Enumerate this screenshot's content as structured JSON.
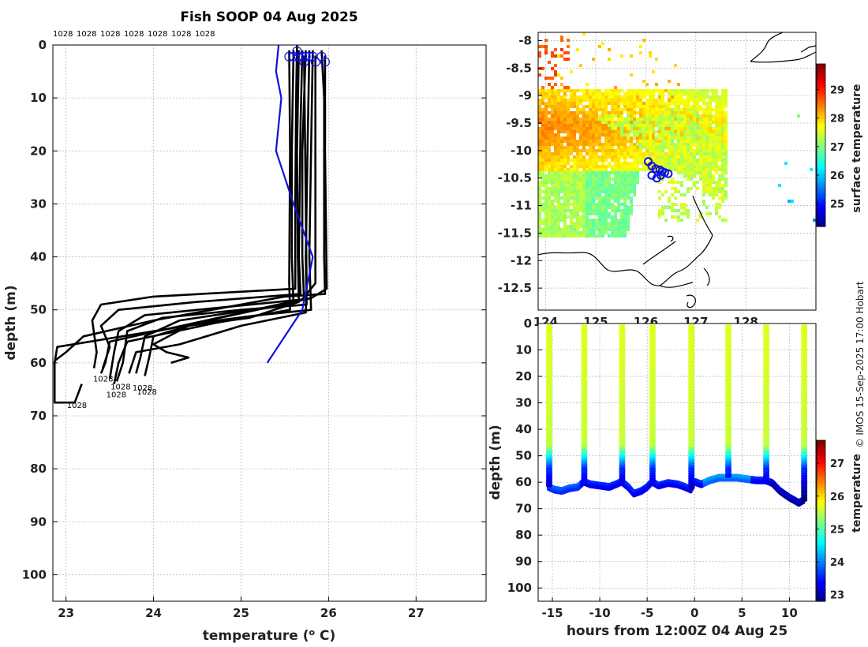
{
  "chart_data": [
    {
      "id": "profiles",
      "type": "line",
      "title": "Fish SOOP 04 Aug 2025",
      "xlabel": "temperature",
      "xlabel_unit": "(o C)",
      "ylabel": "depth (m)",
      "xlim": [
        22.85,
        27.8
      ],
      "ylim": [
        105,
        0
      ],
      "xticks": [
        "23",
        "24",
        "25",
        "26",
        "27"
      ],
      "yticks": [
        "0",
        "10",
        "20",
        "30",
        "40",
        "50",
        "60",
        "70",
        "80",
        "90",
        "100"
      ],
      "grid": true,
      "top_labels": [
        "1028",
        "1028",
        "1028",
        "1028",
        "1028",
        "1028",
        "1028"
      ],
      "bottom_labels": [
        "1028",
        "1028",
        "1028",
        "1028",
        "1028",
        "1028"
      ],
      "climatology_series": {
        "name": "climatology",
        "color": "#1010e0",
        "points": [
          [
            25.43,
            0
          ],
          [
            25.4,
            5
          ],
          [
            25.46,
            10
          ],
          [
            25.4,
            20
          ],
          [
            25.6,
            30
          ],
          [
            25.82,
            40
          ],
          [
            25.7,
            50
          ],
          [
            25.3,
            60
          ]
        ]
      },
      "series": [
        {
          "name": "profile 1",
          "points": [
            [
              25.64,
              0
            ],
            [
              25.63,
              10
            ],
            [
              25.62,
              30
            ],
            [
              25.62,
              46
            ],
            [
              24.0,
              47.5
            ],
            [
              23.4,
              49
            ],
            [
              23.3,
              52
            ],
            [
              23.35,
              58
            ],
            [
              23.32,
              61
            ]
          ]
        },
        {
          "name": "profile 2",
          "points": [
            [
              25.7,
              1
            ],
            [
              25.68,
              15
            ],
            [
              25.66,
              40
            ],
            [
              25.68,
              47
            ],
            [
              24.5,
              48.5
            ],
            [
              23.6,
              50
            ],
            [
              23.4,
              53
            ],
            [
              23.5,
              57
            ],
            [
              23.42,
              61
            ]
          ]
        },
        {
          "name": "profile 3",
          "points": [
            [
              25.74,
              1
            ],
            [
              25.7,
              20
            ],
            [
              25.7,
              40
            ],
            [
              25.72,
              48
            ],
            [
              24.8,
              49.5
            ],
            [
              23.9,
              51
            ],
            [
              23.6,
              54
            ],
            [
              23.55,
              58
            ],
            [
              23.5,
              63
            ]
          ]
        },
        {
          "name": "profile 4",
          "points": [
            [
              25.78,
              1
            ],
            [
              25.76,
              20
            ],
            [
              25.74,
              40
            ],
            [
              25.75,
              49
            ],
            [
              25.0,
              50
            ],
            [
              24.1,
              51.5
            ],
            [
              23.7,
              54
            ],
            [
              23.65,
              60
            ],
            [
              23.58,
              63.5
            ]
          ]
        },
        {
          "name": "profile 5",
          "points": [
            [
              25.6,
              1
            ],
            [
              25.58,
              20
            ],
            [
              25.58,
              40
            ],
            [
              25.6,
              49
            ],
            [
              24.9,
              50.5
            ],
            [
              24.3,
              52
            ],
            [
              23.9,
              55
            ],
            [
              23.85,
              59
            ],
            [
              23.8,
              62
            ]
          ]
        },
        {
          "name": "profile 6",
          "points": [
            [
              25.82,
              1
            ],
            [
              25.8,
              20
            ],
            [
              25.78,
              40
            ],
            [
              25.8,
              50
            ],
            [
              25.2,
              51
            ],
            [
              24.5,
              52.5
            ],
            [
              24.0,
              55
            ],
            [
              23.95,
              59
            ],
            [
              23.9,
              62.5
            ]
          ]
        },
        {
          "name": "profile 7",
          "points": [
            [
              25.66,
              1
            ],
            [
              25.64,
              20
            ],
            [
              25.65,
              40
            ],
            [
              25.66,
              48.5
            ],
            [
              25.1,
              51.5
            ],
            [
              24.4,
              53
            ],
            [
              24.0,
              56.5
            ],
            [
              24.15,
              58
            ],
            [
              24.4,
              59
            ],
            [
              24.2,
              60
            ]
          ]
        },
        {
          "name": "profile 8",
          "points": [
            [
              25.92,
              1
            ],
            [
              25.95,
              10
            ],
            [
              25.95,
              40
            ],
            [
              25.96,
              47
            ],
            [
              25.5,
              47.5
            ],
            [
              24.0,
              52
            ],
            [
              23.2,
              55
            ],
            [
              23.0,
              58
            ],
            [
              22.88,
              59.5
            ]
          ]
        },
        {
          "name": "profile 9",
          "points": [
            [
              25.96,
              2
            ],
            [
              25.96,
              20
            ],
            [
              25.98,
              46
            ],
            [
              25.8,
              47.8
            ],
            [
              24.2,
              53.5
            ],
            [
              22.9,
              57
            ],
            [
              22.87,
              60
            ],
            [
              22.87,
              67.5
            ],
            [
              23.1,
              67.5
            ],
            [
              23.18,
              64
            ]
          ]
        },
        {
          "name": "profile 10",
          "points": [
            [
              25.85,
              2
            ],
            [
              25.85,
              30
            ],
            [
              25.85,
              45
            ],
            [
              25.7,
              48
            ],
            [
              24.6,
              52
            ],
            [
              23.5,
              56
            ],
            [
              23.45,
              60
            ],
            [
              23.4,
              62
            ]
          ]
        },
        {
          "name": "profile 11",
          "points": [
            [
              25.55,
              1
            ],
            [
              25.56,
              20
            ],
            [
              25.55,
              45
            ],
            [
              25.56,
              50
            ],
            [
              24.7,
              52.5
            ],
            [
              23.7,
              56
            ],
            [
              23.6,
              60
            ],
            [
              23.55,
              64
            ]
          ]
        },
        {
          "name": "profile 12",
          "points": [
            [
              25.72,
              2
            ],
            [
              25.74,
              30
            ],
            [
              25.75,
              46
            ],
            [
              25.74,
              50.5
            ],
            [
              25.0,
              53
            ],
            [
              24.3,
              56.5
            ],
            [
              23.8,
              58
            ],
            [
              23.72,
              62
            ]
          ]
        }
      ]
    },
    {
      "id": "surface-map",
      "type": "heatmap",
      "title": "",
      "xticks": [
        "124",
        "125",
        "126",
        "127",
        "128"
      ],
      "yticks": [
        "-8",
        "-8.5",
        "-9",
        "-9.5",
        "-10",
        "-10.5",
        "-11",
        "-11.5",
        "-12",
        "-12.5"
      ],
      "xlim": [
        123.85,
        129.4
      ],
      "ylim": [
        -12.9,
        -7.85
      ],
      "colorbar_label": "surface temperature",
      "colorbar_ticks": [
        "25",
        "26",
        "27",
        "28",
        "29"
      ],
      "colorbar_range": [
        24.2,
        29.9
      ],
      "track_points": [
        [
          126.05,
          -10.2
        ],
        [
          126.12,
          -10.28
        ],
        [
          126.2,
          -10.33
        ],
        [
          126.28,
          -10.35
        ],
        [
          126.33,
          -10.38
        ],
        [
          126.38,
          -10.4
        ],
        [
          126.45,
          -10.42
        ],
        [
          126.3,
          -10.45
        ],
        [
          126.22,
          -10.5
        ],
        [
          126.12,
          -10.45
        ]
      ]
    },
    {
      "id": "section",
      "type": "scatter",
      "xlabel": "hours from 12:00Z 04 Aug 25",
      "ylabel": "depth (m)",
      "xticks": [
        "-15",
        "-10",
        "-5",
        "0",
        "5",
        "10"
      ],
      "yticks": [
        "0",
        "10",
        "20",
        "30",
        "40",
        "50",
        "60",
        "70",
        "80",
        "90",
        "100"
      ],
      "xlim": [
        -16.5,
        12.8
      ],
      "ylim": [
        105,
        0
      ],
      "colorbar_label": "temperature",
      "colorbar_ticks": [
        "23",
        "24",
        "25",
        "26",
        "27"
      ],
      "colorbar_range": [
        22.8,
        27.7
      ],
      "cast_hours": [
        -15.4,
        -11.7,
        -7.7,
        -4.5,
        -0.4,
        3.5,
        7.5,
        11.5
      ],
      "bottom_track": [
        [
          -15.4,
          61
        ],
        [
          -14.8,
          62
        ],
        [
          -14.0,
          62.5
        ],
        [
          -13.2,
          61.5
        ],
        [
          -12.3,
          61
        ],
        [
          -11.7,
          59
        ],
        [
          -11.0,
          60
        ],
        [
          -10.0,
          60.5
        ],
        [
          -9.0,
          61
        ],
        [
          -8.3,
          60
        ],
        [
          -7.7,
          59
        ],
        [
          -7.0,
          61
        ],
        [
          -6.4,
          63.5
        ],
        [
          -5.6,
          62.5
        ],
        [
          -5.0,
          61
        ],
        [
          -4.5,
          59
        ],
        [
          -3.8,
          60.5
        ],
        [
          -2.8,
          59.5
        ],
        [
          -1.8,
          60
        ],
        [
          -1.0,
          61
        ],
        [
          -0.4,
          62
        ],
        [
          0.0,
          59
        ],
        [
          0.7,
          60
        ],
        [
          1.6,
          58.5
        ],
        [
          2.6,
          57.5
        ],
        [
          3.5,
          57.5
        ],
        [
          4.5,
          57.5
        ],
        [
          5.5,
          58
        ],
        [
          6.5,
          58.5
        ],
        [
          7.5,
          58.5
        ],
        [
          8.2,
          59.5
        ],
        [
          9.0,
          62.5
        ],
        [
          10.0,
          65
        ],
        [
          11.0,
          67
        ],
        [
          11.5,
          66
        ]
      ]
    }
  ],
  "credit": "© IMOS 15-Sep-2025 17:00 Hobart"
}
